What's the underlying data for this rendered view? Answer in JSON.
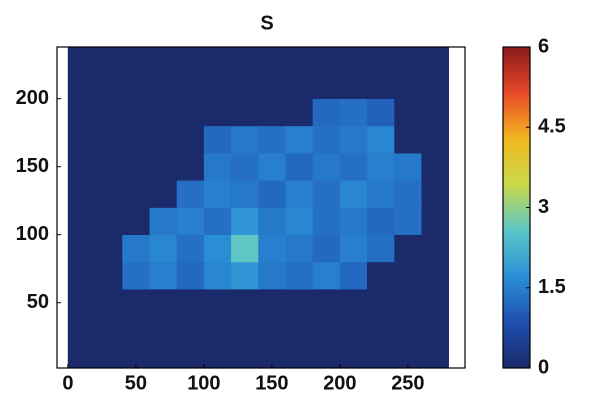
{
  "chart_data": {
    "type": "heatmap",
    "title": "S",
    "x_edges": [
      0,
      20,
      40,
      60,
      80,
      100,
      120,
      140,
      160,
      180,
      200,
      220,
      240,
      260,
      280
    ],
    "y_edges": [
      0,
      20,
      40,
      60,
      80,
      100,
      120,
      140,
      160,
      180,
      200,
      220,
      240
    ],
    "z": [
      [
        0,
        0,
        0,
        0,
        0,
        0,
        0,
        0,
        0,
        0,
        0,
        0,
        0,
        0
      ],
      [
        0,
        0,
        0,
        0,
        0,
        0,
        0,
        0,
        0,
        0,
        0,
        0,
        0,
        0
      ],
      [
        0,
        0,
        0,
        0,
        0,
        0,
        0,
        0,
        0,
        0,
        0,
        0,
        0,
        0
      ],
      [
        0,
        0,
        1.3,
        1.5,
        1.2,
        1.6,
        1.8,
        1.4,
        1.3,
        1.5,
        1.2,
        0,
        0,
        0
      ],
      [
        0,
        0,
        1.4,
        1.6,
        1.3,
        1.7,
        2.6,
        1.5,
        1.4,
        1.2,
        1.5,
        1.3,
        0,
        0
      ],
      [
        0,
        0,
        0,
        1.4,
        1.5,
        1.3,
        1.8,
        1.4,
        1.6,
        1.3,
        1.4,
        1.2,
        1.3,
        0
      ],
      [
        0,
        0,
        0,
        0,
        1.3,
        1.5,
        1.4,
        1.2,
        1.5,
        1.3,
        1.6,
        1.4,
        1.3,
        0
      ],
      [
        0,
        0,
        0,
        0,
        0,
        1.4,
        1.3,
        1.5,
        1.2,
        1.4,
        1.3,
        1.5,
        1.4,
        0
      ],
      [
        0,
        0,
        0,
        0,
        0,
        1.2,
        1.4,
        1.3,
        1.5,
        1.3,
        1.4,
        1.6,
        0,
        0
      ],
      [
        0,
        0,
        0,
        0,
        0,
        0,
        0,
        0,
        0,
        1.2,
        1.3,
        1.1,
        0,
        0
      ],
      [
        0,
        0,
        0,
        0,
        0,
        0,
        0,
        0,
        0,
        0,
        0,
        0,
        0,
        0
      ],
      [
        0,
        0,
        0,
        0,
        0,
        0,
        0,
        0,
        0,
        0,
        0,
        0,
        0,
        0
      ]
    ],
    "xlim": [
      -8,
      292
    ],
    "ylim": [
      2,
      238
    ],
    "xticks": [
      0,
      50,
      100,
      150,
      200,
      250
    ],
    "yticks": [
      50,
      100,
      150,
      200
    ],
    "zlim": [
      0,
      6
    ],
    "colorbar_ticks": [
      0,
      1.5,
      3,
      4.5,
      6
    ],
    "colormap": [
      "#1b2a6b",
      "#1f4fb0",
      "#2a8fd6",
      "#5cc7c8",
      "#c9d94a",
      "#f3b81f",
      "#e8492a",
      "#8b1a1a"
    ]
  }
}
